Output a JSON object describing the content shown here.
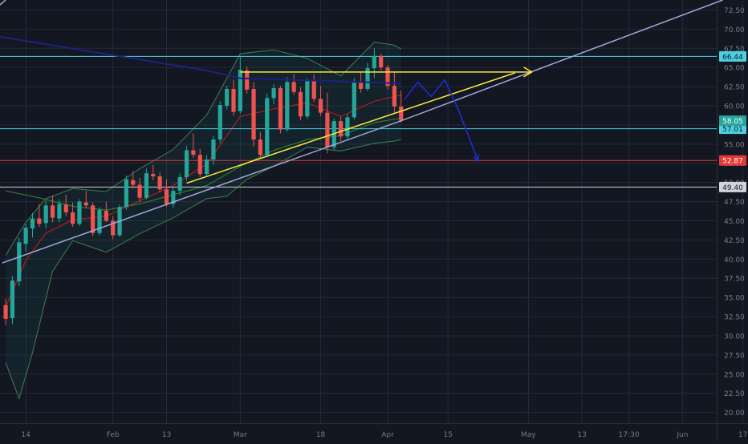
{
  "colors": {
    "background": "#131722",
    "grid": "#242a38",
    "axis_text": "#787b86",
    "up": "#26a69a",
    "down": "#ef5350",
    "bb_line": "#3f7f52",
    "bb_fill": "rgba(38,166,154,0.08)",
    "ma_red": "#b71c1c",
    "ma_green": "#2e7d32",
    "cyan": "#4dd0e1",
    "red_level": "#e53935",
    "white_level": "#d1d4dc",
    "yellow": "#ffeb3b",
    "navy": "#1a237e",
    "lavender": "#9fa8da",
    "projection": "#1e2ccf",
    "current": "#26a69a"
  },
  "chart_data": {
    "type": "candlestick",
    "title": "",
    "xlabel": "",
    "ylabel": "",
    "ylim": [
      18.6,
      73.8
    ],
    "y_ticks": [
      "20.00",
      "22.50",
      "25.00",
      "27.50",
      "30.00",
      "32.50",
      "35.00",
      "37.50",
      "40.00",
      "42.50",
      "45.00",
      "47.50",
      "50.00",
      "52.50",
      "55.00",
      "57.50",
      "60.00",
      "62.50",
      "65.00",
      "67.50",
      "70.00",
      "72.50"
    ],
    "x_ticks": [
      {
        "label": "14",
        "i": 3
      },
      {
        "label": "Feb",
        "i": 16
      },
      {
        "label": "13",
        "i": 24
      },
      {
        "label": "Mar",
        "i": 35
      },
      {
        "label": "18",
        "i": 47
      },
      {
        "label": "Apr",
        "i": 57
      },
      {
        "label": "15",
        "i": 66
      },
      {
        "label": "May",
        "i": 78
      },
      {
        "label": "13",
        "i": 86
      },
      {
        "label": "17:30",
        "i": 93
      },
      {
        "label": "Jun",
        "i": 101
      },
      {
        "label": "17",
        "i": 110
      }
    ],
    "candles": [
      [
        34,
        34.8,
        31.4,
        32.2
      ],
      [
        32.3,
        37.8,
        31.5,
        37.2
      ],
      [
        37.1,
        42.8,
        36.5,
        42.2
      ],
      [
        42.0,
        44.6,
        41.0,
        44.1
      ],
      [
        44.0,
        46.0,
        42.8,
        45.3
      ],
      [
        45.3,
        47.2,
        44.2,
        44.6
      ],
      [
        44.7,
        47.6,
        44.0,
        47.0
      ],
      [
        47.0,
        48.3,
        44.8,
        45.4
      ],
      [
        45.3,
        47.8,
        44.8,
        47.2
      ],
      [
        47.1,
        48.4,
        45.6,
        46.1
      ],
      [
        46.1,
        47.4,
        44.2,
        44.6
      ],
      [
        44.6,
        47.8,
        44.3,
        47.5
      ],
      [
        47.4,
        48.9,
        46.6,
        47.0
      ],
      [
        47.0,
        47.4,
        43.0,
        43.4
      ],
      [
        43.4,
        46.8,
        43.1,
        46.4
      ],
      [
        46.3,
        47.5,
        44.8,
        45.0
      ],
      [
        45.0,
        45.6,
        42.6,
        43.1
      ],
      [
        43.1,
        47.1,
        42.9,
        46.8
      ],
      [
        46.8,
        50.9,
        46.4,
        50.4
      ],
      [
        50.3,
        51.5,
        49.2,
        49.7
      ],
      [
        49.7,
        50.6,
        47.4,
        48.0
      ],
      [
        48.0,
        51.8,
        47.8,
        51.2
      ],
      [
        51.1,
        52.3,
        50.3,
        50.8
      ],
      [
        50.8,
        51.3,
        48.7,
        49.1
      ],
      [
        49.1,
        50.4,
        46.8,
        47.2
      ],
      [
        47.2,
        49.4,
        46.7,
        48.9
      ],
      [
        48.9,
        51.2,
        48.3,
        50.7
      ],
      [
        50.7,
        54.8,
        50.2,
        54.2
      ],
      [
        54.2,
        56.4,
        53.2,
        53.6
      ],
      [
        53.6,
        54.4,
        50.7,
        51.1
      ],
      [
        51.1,
        53.6,
        50.9,
        53.0
      ],
      [
        53.0,
        56.1,
        52.3,
        55.6
      ],
      [
        55.6,
        60.6,
        55.1,
        60.1
      ],
      [
        60.0,
        62.6,
        59.5,
        62.2
      ],
      [
        62.2,
        63.4,
        58.7,
        59.2
      ],
      [
        59.3,
        66.4,
        59.0,
        64.7
      ],
      [
        64.6,
        65.1,
        61.6,
        62.1
      ],
      [
        62.2,
        63.1,
        54.7,
        55.6
      ],
      [
        55.6,
        56.6,
        53.1,
        53.6
      ],
      [
        53.6,
        61.6,
        53.3,
        61.0
      ],
      [
        61.0,
        62.8,
        60.2,
        62.3
      ],
      [
        62.3,
        62.6,
        56.4,
        56.9
      ],
      [
        56.9,
        63.7,
        56.6,
        63.1
      ],
      [
        63.1,
        64.1,
        61.4,
        61.8
      ],
      [
        61.8,
        62.4,
        58.1,
        58.6
      ],
      [
        58.6,
        63.6,
        58.3,
        63.2
      ],
      [
        63.2,
        64.1,
        60.5,
        60.9
      ],
      [
        60.9,
        62.6,
        58.7,
        59.1
      ],
      [
        59.1,
        61.7,
        53.8,
        54.6
      ],
      [
        54.6,
        58.4,
        54.2,
        58.0
      ],
      [
        58.0,
        58.6,
        55.4,
        56.0
      ],
      [
        56.0,
        58.9,
        55.5,
        58.5
      ],
      [
        58.5,
        63.6,
        58.2,
        63.0
      ],
      [
        63.0,
        64.4,
        61.7,
        62.2
      ],
      [
        62.2,
        65.6,
        61.9,
        64.9
      ],
      [
        64.9,
        67.5,
        63.6,
        66.5
      ],
      [
        66.5,
        66.8,
        64.6,
        65.0
      ],
      [
        65.0,
        65.3,
        62.1,
        62.6
      ],
      [
        62.6,
        64.4,
        59.1,
        59.9
      ],
      [
        59.9,
        62.0,
        57.8,
        58.05
      ]
    ],
    "bb_upper": [
      [
        0,
        40.5
      ],
      [
        3,
        44.8
      ],
      [
        6,
        47.9
      ],
      [
        10,
        49.2
      ],
      [
        15,
        48.8
      ],
      [
        20,
        51.8
      ],
      [
        25,
        54.3
      ],
      [
        30,
        58.8
      ],
      [
        35,
        66.8
      ],
      [
        40,
        67.3
      ],
      [
        45,
        66.2
      ],
      [
        50,
        63.9
      ],
      [
        55,
        68.3
      ],
      [
        58,
        67.9
      ],
      [
        59,
        67.4
      ]
    ],
    "bb_lower": [
      [
        0,
        26.5
      ],
      [
        2,
        21.8
      ],
      [
        4,
        27.8
      ],
      [
        7,
        38.4
      ],
      [
        10,
        42.4
      ],
      [
        15,
        40.9
      ],
      [
        20,
        43.3
      ],
      [
        25,
        45.4
      ],
      [
        30,
        47.9
      ],
      [
        33,
        48.2
      ],
      [
        36,
        50.4
      ],
      [
        40,
        52.1
      ],
      [
        45,
        54.6
      ],
      [
        50,
        54.1
      ],
      [
        55,
        55.1
      ],
      [
        58,
        55.4
      ],
      [
        59,
        55.6
      ]
    ],
    "ma_red": [
      [
        0,
        33.8
      ],
      [
        3,
        39.8
      ],
      [
        6,
        43.4
      ],
      [
        10,
        45.1
      ],
      [
        15,
        45.6
      ],
      [
        20,
        47.6
      ],
      [
        25,
        49.6
      ],
      [
        30,
        52.4
      ],
      [
        35,
        58.6
      ],
      [
        40,
        59.6
      ],
      [
        45,
        60.4
      ],
      [
        50,
        58.6
      ],
      [
        55,
        60.6
      ],
      [
        59,
        61.4
      ]
    ],
    "ma_green": [
      [
        0,
        48.9
      ],
      [
        5,
        48.0
      ],
      [
        10,
        46.9
      ],
      [
        15,
        46.4
      ],
      [
        20,
        47.2
      ],
      [
        25,
        48.4
      ],
      [
        30,
        49.6
      ],
      [
        35,
        52.1
      ],
      [
        40,
        54.2
      ],
      [
        45,
        55.6
      ],
      [
        50,
        56.1
      ],
      [
        55,
        57.8
      ],
      [
        59,
        58.4
      ]
    ],
    "levels": [
      {
        "value": 66.44,
        "label": "66.44",
        "color": "cyan"
      },
      {
        "value": 57.01,
        "label": "57.01",
        "color": "cyan"
      },
      {
        "value": 52.87,
        "label": "52.87",
        "color": "red_level"
      },
      {
        "value": 49.4,
        "label": "49.40",
        "color": "white_level"
      }
    ],
    "current_price": {
      "value": 58.05,
      "label": "58.05"
    },
    "drawings": {
      "yellow_top": [
        [
          35,
          64.4
        ],
        [
          65.5,
          64.4
        ]
      ],
      "yellow_arrow": [
        [
          65.5,
          64.4
        ],
        [
          78.5,
          64.4
        ]
      ],
      "yellow_support": [
        [
          27,
          49.9
        ],
        [
          76,
          64.3
        ]
      ],
      "navy_line": [
        [
          -5,
          69.6
        ],
        [
          30,
          64.6
        ],
        [
          35,
          63.6
        ],
        [
          50,
          63.2
        ],
        [
          59,
          62.9
        ]
      ],
      "lavender_line": [
        [
          -0.5,
          39.5
        ],
        [
          59,
          58.05
        ],
        [
          107,
          73.8
        ]
      ],
      "lavender_top": [
        [
          -5,
          70.2
        ],
        [
          0,
          73.8
        ]
      ],
      "projection": [
        [
          59.5,
          60.8
        ],
        [
          61.5,
          63.1
        ],
        [
          63.5,
          61.2
        ],
        [
          65.5,
          63.4
        ],
        [
          67.5,
          59.6
        ],
        [
          70.5,
          52.8
        ]
      ]
    }
  }
}
